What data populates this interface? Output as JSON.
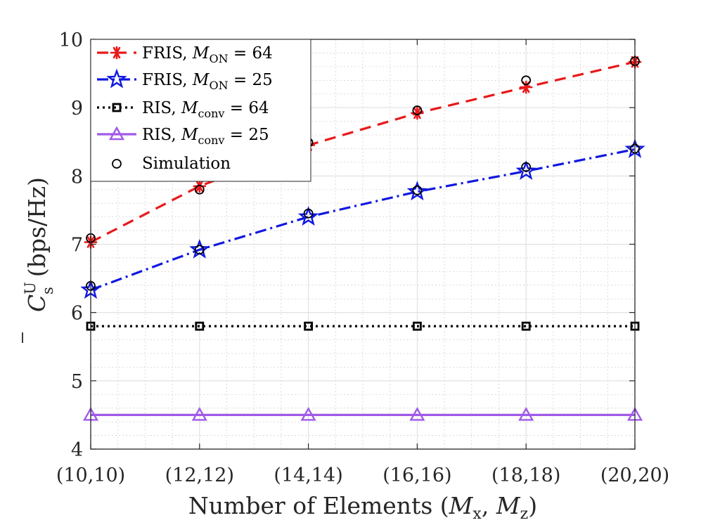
{
  "chart_data": {
    "type": "line",
    "categories": [
      "(10,10)",
      "(12,12)",
      "(14,14)",
      "(16,16)",
      "(18,18)",
      "(20,20)"
    ],
    "xlabel": {
      "text": "Number of Elements (",
      "m1": "M",
      "s1": "x",
      "sep": ", ",
      "m2": "M",
      "s2": "z",
      "close": ")"
    },
    "ylabel": {
      "sym": "C",
      "sup": "U",
      "sub": "s",
      "unit": "(bps/Hz)"
    },
    "ylim": [
      4,
      10
    ],
    "yticks": [
      "4",
      "5",
      "6",
      "7",
      "8",
      "9",
      "10"
    ],
    "grid": true,
    "minor_grid": true,
    "legend_position": "top-left",
    "series": [
      {
        "name": "FRIS, ",
        "label_math": {
          "sym": "M",
          "sub": "ON",
          "eq": " = 64"
        },
        "values": [
          7.03,
          7.85,
          8.45,
          8.92,
          9.3,
          9.67
        ],
        "color": "#e8191a",
        "line_style": "dashed",
        "marker": "asterisk"
      },
      {
        "name": "FRIS, ",
        "label_math": {
          "sym": "M",
          "sub": "ON",
          "eq": " = 25"
        },
        "values": [
          6.33,
          6.92,
          7.4,
          7.77,
          8.07,
          8.39
        ],
        "color": "#1018e0",
        "line_style": "dashdot",
        "marker": "pentagram"
      },
      {
        "name": "RIS, ",
        "label_math": {
          "sym": "M",
          "sub": "conv",
          "eq": " = 64"
        },
        "values": [
          5.8,
          5.8,
          5.8,
          5.8,
          5.8,
          5.8
        ],
        "color": "#000000",
        "line_style": "dotted",
        "marker": "square"
      },
      {
        "name": "RIS, ",
        "label_math": {
          "sym": "M",
          "sub": "conv",
          "eq": " = 25"
        },
        "values": [
          4.5,
          4.5,
          4.5,
          4.5,
          4.5,
          4.5
        ],
        "color": "#a05ae8",
        "line_style": "solid",
        "marker": "triangle"
      }
    ],
    "simulation": {
      "name": "Simulation",
      "marker": "circle",
      "color": "#000000",
      "points": [
        [
          7.09,
          7.8,
          8.49,
          8.96,
          9.4,
          9.68
        ],
        [
          6.39,
          6.92,
          7.45,
          7.79,
          8.13,
          8.4
        ]
      ]
    }
  }
}
